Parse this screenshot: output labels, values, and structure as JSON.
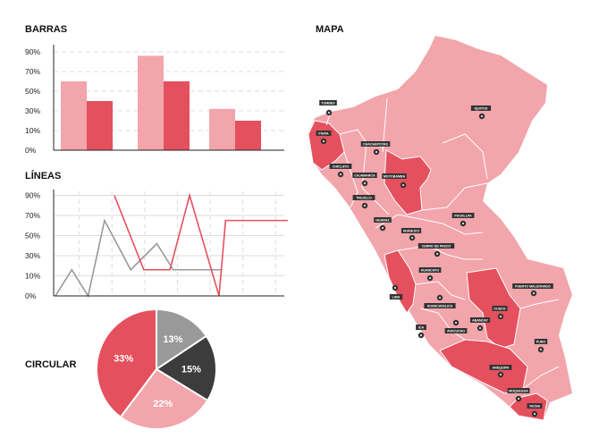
{
  "colors": {
    "light": "#f2a5ab",
    "red": "#e5505e",
    "gray": "#999999",
    "dark": "#3c3c3c",
    "grid": "#dddddd",
    "axis": "#222222"
  },
  "chart_data": [
    {
      "type": "bar",
      "title": "BARRAS",
      "yticks": [
        "0%",
        "10%",
        "30%",
        "50%",
        "70%",
        "90%"
      ],
      "ytick_values": [
        0,
        10,
        30,
        50,
        70,
        90
      ],
      "categories": [
        "",
        "",
        ""
      ],
      "series": [
        {
          "values": [
            60,
            86,
            32
          ],
          "color": "#f2a5ab"
        },
        {
          "values": [
            40,
            60,
            20
          ],
          "color": "#e5505e"
        }
      ],
      "grid": "dashed horizontal"
    },
    {
      "type": "line",
      "title": "LÍNEAS",
      "yticks": [
        "0%",
        "10%",
        "30%",
        "50%",
        "70%",
        "90%"
      ],
      "ytick_values": [
        0,
        10,
        30,
        50,
        70,
        90
      ],
      "xlim": [
        0,
        7
      ],
      "series": [
        {
          "color": "#999999",
          "x": [
            0,
            0.5,
            1,
            1.5,
            2.3,
            3.1,
            3.6,
            5.1
          ],
          "y": [
            0,
            16,
            0,
            65,
            16,
            42,
            16,
            16
          ]
        },
        {
          "color": "#e5505e",
          "x": [
            1.8,
            2.7,
            3.5,
            4.1,
            5,
            5.2,
            7.1
          ],
          "y": [
            90,
            16,
            16,
            90,
            0,
            65,
            65
          ]
        }
      ],
      "grid": "solid horizontal, dashed vertical"
    },
    {
      "type": "pie",
      "title": "CIRCULAR",
      "slices": [
        {
          "label": "13%",
          "value": 13,
          "color": "#999999"
        },
        {
          "label": "15%",
          "value": 15,
          "color": "#3c3c3c"
        },
        {
          "label": "22%",
          "value": 22,
          "color": "#f2a5ab"
        },
        {
          "label": "33%",
          "value": 33,
          "color": "#e5505e"
        }
      ]
    }
  ],
  "map": {
    "title": "MAPA",
    "cities": [
      "TUMBES",
      "PIURA",
      "CHACHAPOYAS",
      "CHICLAYO",
      "CAJAMARCA",
      "MOYOBAMBA",
      "TRUJILLO",
      "HUARAZ",
      "HUÁNUCO",
      "PUCALLPA",
      "CERRO DE PASCO",
      "IQUITOS",
      "HUANCAYO",
      "LIMA",
      "HUANCAVELICA",
      "ICA",
      "AYACUCHO",
      "ABANCAY",
      "CUSCO",
      "PUERTO MALDONADO",
      "PUNO",
      "AREQUIPA",
      "MOQUEGUA",
      "TACNA"
    ]
  }
}
